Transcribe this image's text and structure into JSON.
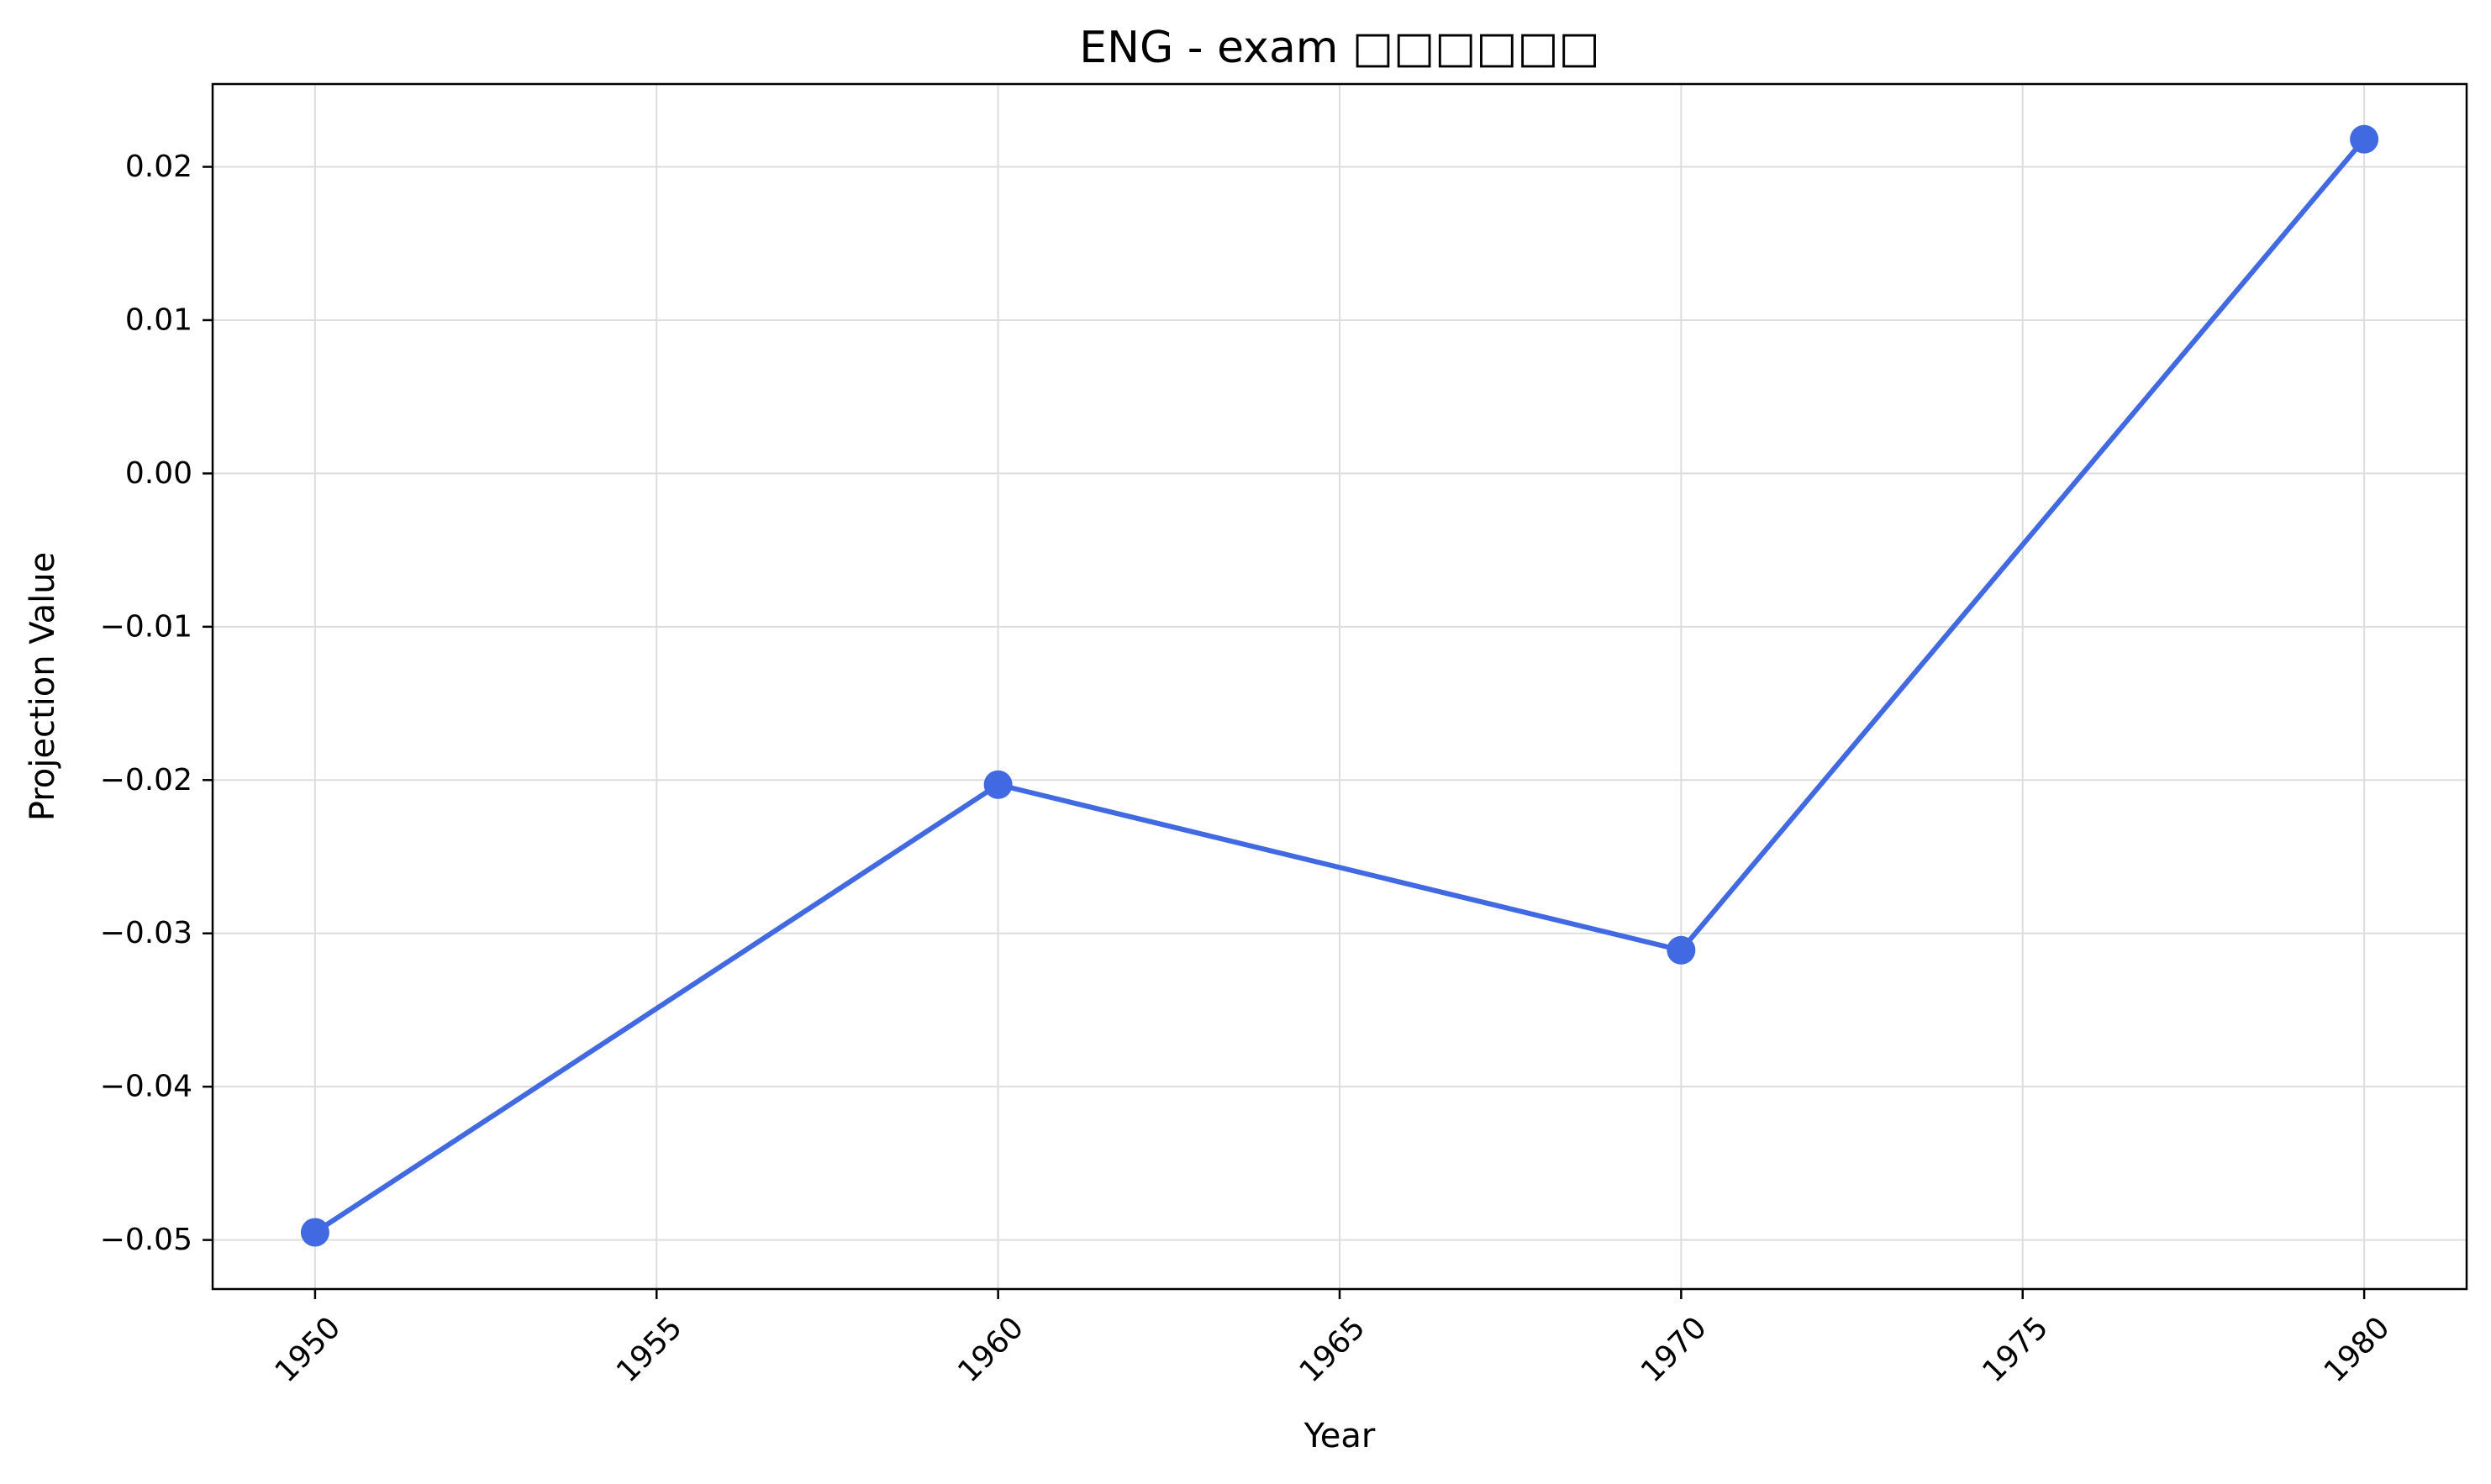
{
  "chart_data": {
    "type": "line",
    "title": "ENG - exam □□□□□□",
    "xlabel": "Year",
    "ylabel": "Projection Value",
    "x": [
      1950,
      1960,
      1970,
      1980
    ],
    "series": [
      {
        "values": [
          -0.0495,
          -0.0203,
          -0.0311,
          0.0218
        ],
        "color": "#4169e1"
      }
    ],
    "xlim": [
      1948.5,
      1981.5
    ],
    "ylim": [
      -0.0532,
      0.0254
    ],
    "xticks": [
      1950,
      1955,
      1960,
      1965,
      1970,
      1975,
      1980
    ],
    "xtick_labels": [
      "1950",
      "1955",
      "1960",
      "1965",
      "1970",
      "1975",
      "1980"
    ],
    "yticks": [
      -0.05,
      -0.04,
      -0.03,
      -0.02,
      -0.01,
      0.0,
      0.01,
      0.02
    ],
    "ytick_labels": [
      "−0.05",
      "−0.04",
      "−0.03",
      "−0.02",
      "−0.01",
      "0.00",
      "0.01",
      "0.02"
    ],
    "grid": true,
    "legend": "none"
  }
}
